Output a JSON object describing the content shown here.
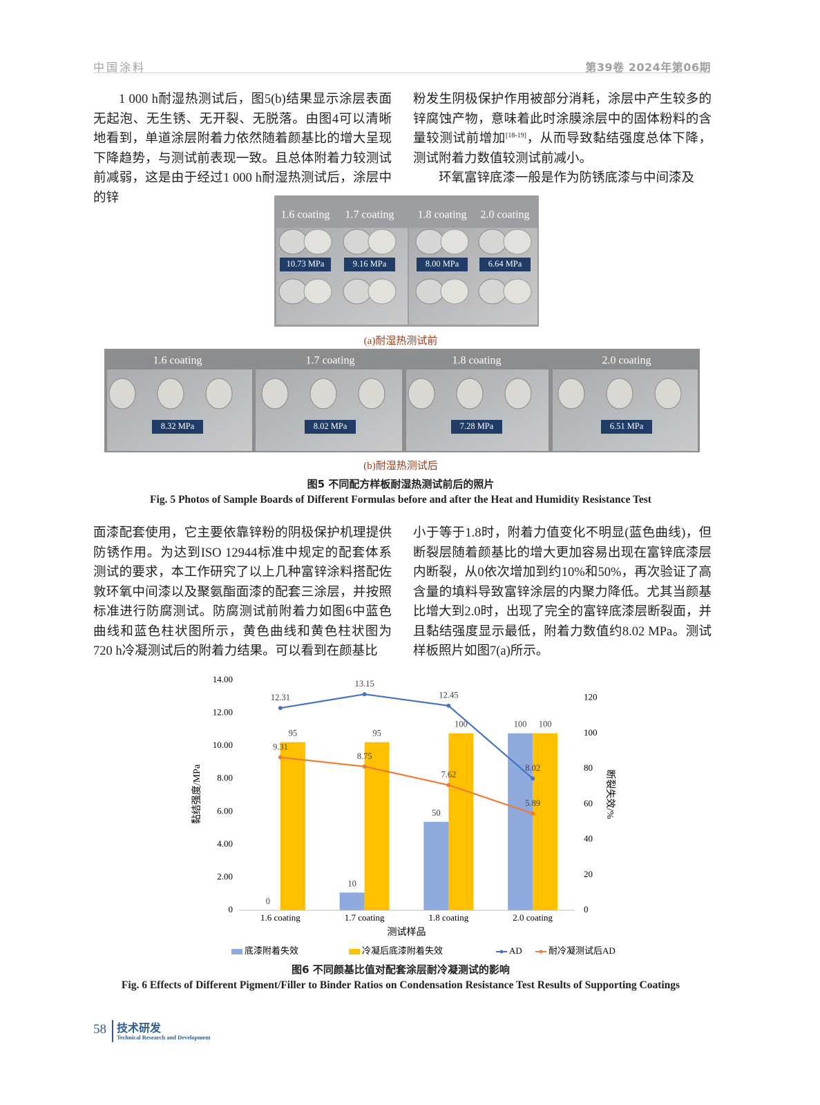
{
  "header": {
    "journal": "中国涂料",
    "issue": "第39卷  2024年第06期"
  },
  "text1": {
    "left": "1 000 h耐湿热测试后，图5(b)结果显示涂层表面无起泡、无生锈、无开裂、无脱落。由图4可以清晰地看到，单道涂层附着力依然随着颜基比的增大呈现下降趋势，与测试前表现一致。且总体附着力较测试前减弱，这是由于经过1 000 h耐湿热测试后，涂层中的锌",
    "right_before_ref": "粉发生阴极保护作用被部分消耗，涂层中产生较多的锌腐蚀产物，意味着此时涂膜涂层中的固体粉料的含量较测试前增加",
    "ref": "[18-19]",
    "right_after_ref": "，从而导致黏结强度总体下降，测试附着力数值较测试前减小。",
    "right_para2": "环氧富锌底漆一般是作为防锈底漆与中间漆及"
  },
  "figure5": {
    "panel_a": {
      "labels": [
        "1.6 coating",
        "1.7 coating",
        "1.8 coating",
        "2.0 coating"
      ],
      "values": [
        "10.73 MPa",
        "9.16 MPa",
        "8.00 MPa",
        "6.64 MPa"
      ],
      "caption": "(a)耐湿热测试前"
    },
    "panel_b": {
      "labels": [
        "1.6 coating",
        "1.7 coating",
        "1.8 coating",
        "2.0 coating"
      ],
      "values": [
        "8.32 MPa",
        "8.02 MPa",
        "7.28 MPa",
        "6.51 MPa"
      ],
      "caption": "(b)耐湿热测试后"
    },
    "caption_cn": "图5  不同配方样板耐湿热测试前后的照片",
    "caption_en": "Fig. 5  Photos of Sample Boards of Different Formulas before and after the Heat and Humidity Resistance Test"
  },
  "text2": {
    "left": "面漆配套使用，它主要依靠锌粉的阴极保护机理提供防锈作用。为达到ISO 12944标准中规定的配套体系测试的要求，本工作研究了以上几种富锌涂料搭配佐敦环氧中间漆以及聚氨酯面漆的配套三涂层，并按照标准进行防腐测试。防腐测试前附着力如图6中蓝色曲线和蓝色柱状图所示，黄色曲线和黄色柱状图为720 h冷凝测试后的附着力结果。可以看到在颜基比",
    "right": "小于等于1.8时，附着力值变化不明显(蓝色曲线)，但断裂层随着颜基比的增大更加容易出现在富锌底漆层内断裂，从0依次增加到约10%和50%，再次验证了高含量的填料导致富锌涂层的内聚力降低。尤其当颜基比增大到2.0时，出现了完全的富锌底漆层断裂面，并且黏结强度显示最低，附着力数值约8.02 MPa。测试样板照片如图7(a)所示。"
  },
  "chart_data": {
    "type": "bar",
    "x_label": "测试样品",
    "y_label": "黏结强度/MPa",
    "y2_label": "断裂失效/%",
    "categories": [
      "1.6 coating",
      "1.7 coating",
      "1.8 coating",
      "2.0 coating"
    ],
    "series": [
      {
        "name": "底漆附着失效",
        "type": "bar",
        "axis": "y2",
        "color": "#8faadc",
        "values": [
          0,
          10,
          50,
          100
        ]
      },
      {
        "name": "冷凝后底漆附着失效",
        "type": "bar",
        "axis": "y2",
        "color": "#ffc000",
        "values": [
          95,
          95,
          100,
          100
        ]
      },
      {
        "name": "AD",
        "type": "line",
        "color": "#4472c4",
        "values": [
          12.31,
          13.15,
          12.45,
          8.02
        ]
      },
      {
        "name": "耐冷凝测试后AD",
        "type": "line",
        "color": "#ed7d31",
        "values": [
          9.31,
          8.75,
          7.62,
          5.89
        ]
      }
    ],
    "ylim": [
      0,
      14
    ],
    "yticks": [
      0,
      {
        "value": 2,
        "label": "2.00"
      },
      {
        "value": 4,
        "label": "4.00"
      },
      {
        "value": 6,
        "label": "6.00"
      },
      {
        "value": 8,
        "label": "8.00"
      },
      {
        "value": 10,
        "label": "10.00"
      },
      {
        "value": 12,
        "label": "12.00"
      },
      {
        "value": 14,
        "label": "14.00"
      }
    ],
    "y2lim": [
      0,
      130
    ],
    "y2ticks": [
      0,
      20,
      40,
      60,
      80,
      100,
      120
    ]
  },
  "figure6": {
    "caption_cn": "图6  不同颜基比值对配套涂层耐冷凝测试的影响",
    "caption_en": "Fig. 6  Effects of Different Pigment/Filler to Binder Ratios on Condensation Resistance Test Results of Supporting Coatings"
  },
  "footer": {
    "page": "58",
    "section_cn": "技术研发",
    "section_en": "Technical Research and Development"
  }
}
